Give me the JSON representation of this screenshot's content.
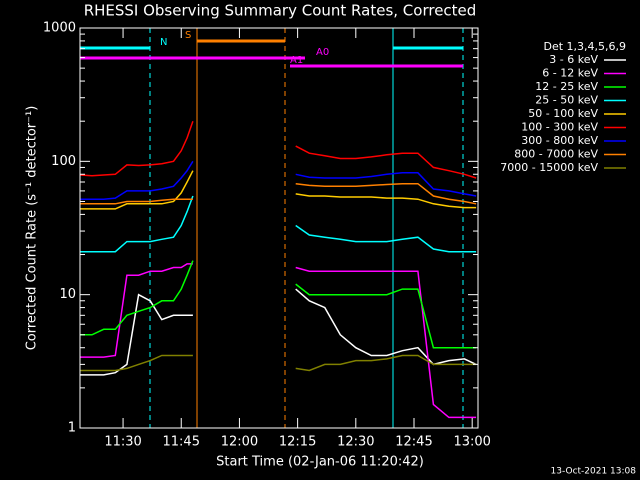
{
  "chart_data": {
    "type": "line",
    "title": "RHESSI Observing Summary Count Rates, Corrected",
    "xlabel": "Start Time (02-Jan-06 11:20:42)",
    "ylabel": "Corrected Count Rate (s⁻¹ detector⁻¹)",
    "legend_title": "Det 1,3,4,5,6,9",
    "footer": "13-Oct-2021 13:08",
    "log_y": true,
    "xlim": [
      18.9,
      121.5
    ],
    "xticks": [
      {
        "value": 30,
        "label": "11:30"
      },
      {
        "value": 45,
        "label": "11:45"
      },
      {
        "value": 60,
        "label": "12:00"
      },
      {
        "value": 75,
        "label": "12:15"
      },
      {
        "value": 90,
        "label": "12:30"
      },
      {
        "value": 105,
        "label": "12:45"
      },
      {
        "value": 120,
        "label": "13:00"
      }
    ],
    "ylim": [
      1,
      1000
    ],
    "yticks": [
      1,
      10,
      100,
      1000
    ],
    "annotations": [
      {
        "text": "N",
        "color": "#00ffff"
      },
      {
        "text": "S",
        "color": "#ff8000"
      },
      {
        "text": "A0",
        "color": "#ff00ff"
      },
      {
        "text": "A1",
        "color": "#ff00ff"
      }
    ],
    "x": [
      19,
      22,
      25,
      28,
      31,
      34,
      37,
      40,
      43,
      45,
      46.5,
      48,
      60,
      74.5,
      78,
      82,
      86,
      90,
      94,
      98,
      102,
      106,
      110,
      114,
      118,
      121
    ],
    "series": [
      {
        "name": "3 - 6 keV",
        "color": "#ffffff",
        "values": [
          2.5,
          2.5,
          2.5,
          2.6,
          3,
          10,
          9,
          6.5,
          7,
          7,
          7,
          7,
          null,
          11,
          9,
          8,
          5,
          4,
          3.5,
          3.5,
          3.8,
          4,
          3,
          3.2,
          3.3,
          3
        ]
      },
      {
        "name": "6 - 12 keV",
        "color": "#ff00ff",
        "values": [
          3.4,
          3.4,
          3.4,
          3.5,
          14,
          14,
          15,
          15,
          16,
          16,
          17,
          17,
          null,
          16,
          15,
          15,
          15,
          15,
          15,
          15,
          15,
          15,
          1.5,
          1.2,
          1.2,
          1.2
        ]
      },
      {
        "name": "12 - 25 keV",
        "color": "#00ff00",
        "values": [
          5,
          5,
          5.5,
          5.5,
          7,
          7.5,
          8,
          9,
          9,
          11,
          14,
          18,
          null,
          12,
          10,
          10,
          10,
          10,
          10,
          10,
          11,
          11,
          4,
          4,
          4,
          4
        ]
      },
      {
        "name": "25 - 50 keV",
        "color": "#00ffff",
        "values": [
          21,
          21,
          21,
          21,
          25,
          25,
          25,
          26,
          27,
          33,
          42,
          55,
          null,
          33,
          28,
          27,
          26,
          25,
          25,
          25,
          26,
          27,
          22,
          21,
          21,
          21
        ]
      },
      {
        "name": "50 - 100 keV",
        "color": "#ffcc00",
        "values": [
          44,
          44,
          44,
          44,
          48,
          48,
          48,
          48,
          50,
          58,
          70,
          85,
          null,
          57,
          55,
          55,
          54,
          54,
          54,
          53,
          53,
          52,
          48,
          46,
          45,
          45
        ]
      },
      {
        "name": "100 - 300 keV",
        "color": "#ff0000",
        "values": [
          79,
          78,
          79,
          80,
          94,
          93,
          94,
          96,
          100,
          120,
          150,
          200,
          null,
          130,
          115,
          110,
          105,
          105,
          108,
          112,
          115,
          115,
          90,
          85,
          80,
          75
        ]
      },
      {
        "name": "300 - 800 keV",
        "color": "#0000ff",
        "values": [
          52,
          52,
          52,
          53,
          60,
          60,
          60,
          62,
          65,
          75,
          85,
          100,
          null,
          80,
          76,
          75,
          75,
          75,
          77,
          80,
          82,
          82,
          62,
          60,
          57,
          55
        ]
      },
      {
        "name": "800 - 7000 keV",
        "color": "#ff8000",
        "values": [
          48,
          48,
          48,
          48,
          50,
          50,
          50,
          51,
          52,
          52,
          52,
          52,
          null,
          68,
          66,
          65,
          65,
          65,
          66,
          67,
          68,
          68,
          55,
          52,
          50,
          48
        ]
      },
      {
        "name": "7000 - 15000 keV",
        "color": "#808000",
        "values": [
          2.7,
          2.7,
          2.7,
          2.7,
          2.8,
          3,
          3.2,
          3.5,
          3.5,
          3.5,
          3.5,
          3.5,
          null,
          2.8,
          2.7,
          3,
          3,
          3.2,
          3.2,
          3.3,
          3.5,
          3.5,
          3,
          3,
          3,
          3
        ]
      }
    ]
  }
}
